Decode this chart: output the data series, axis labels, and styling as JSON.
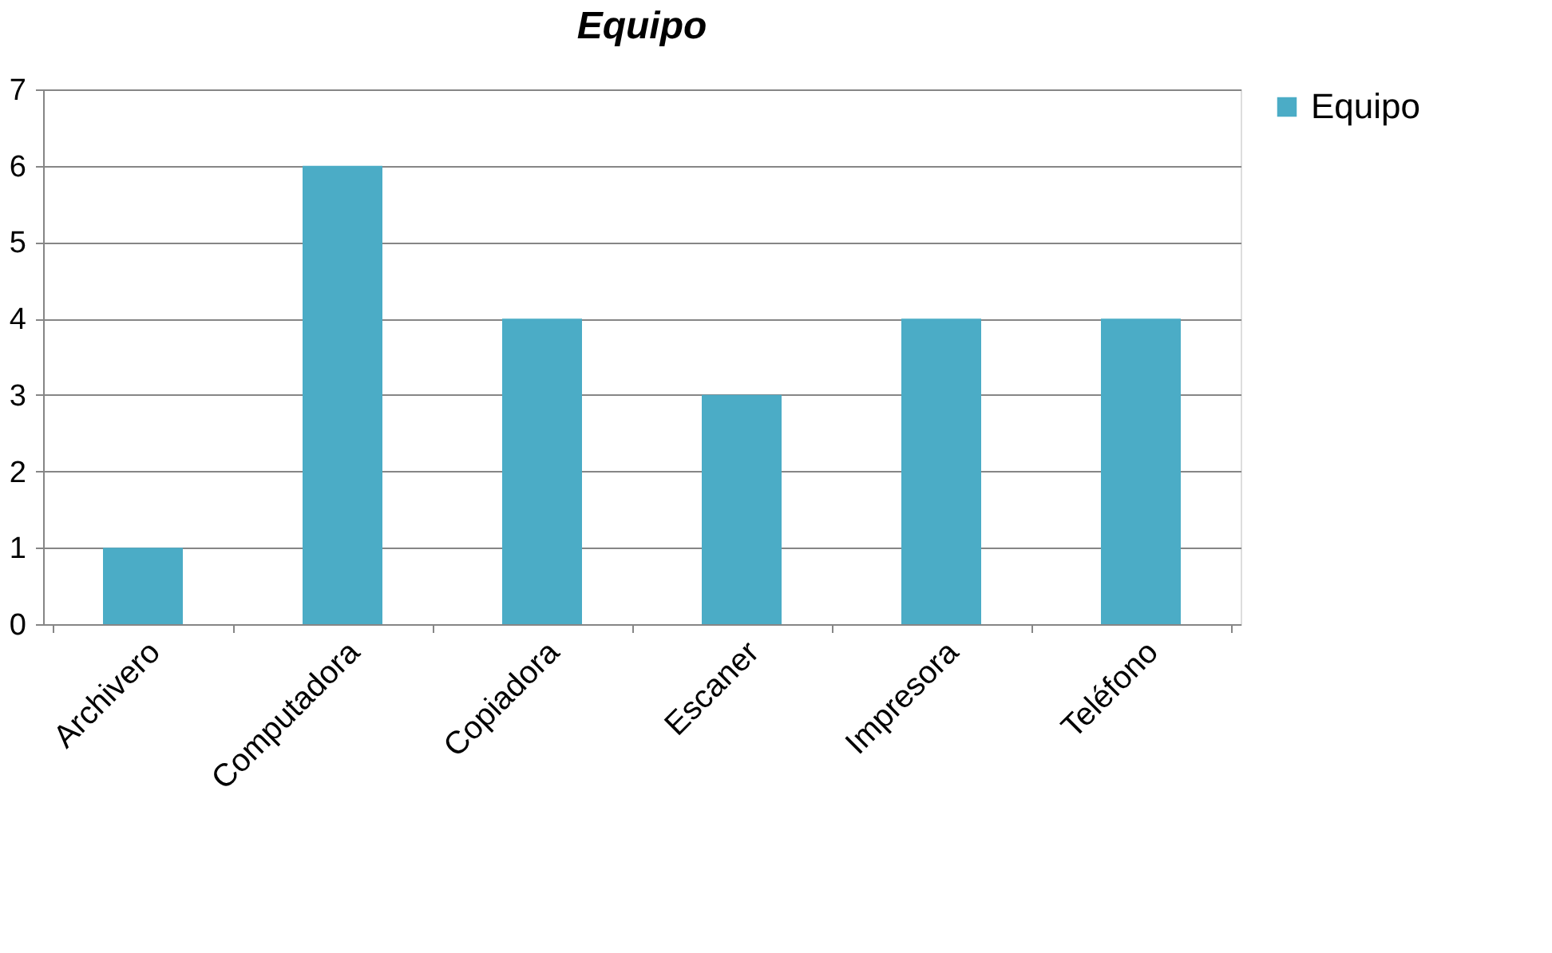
{
  "chart_data": {
    "type": "bar",
    "title": "Equipo",
    "categories": [
      "Archivero",
      "Computadora",
      "Copiadora",
      "Escaner",
      "Impresora",
      "Teléfono"
    ],
    "series": [
      {
        "name": "Equipo",
        "color": "#4bacc6",
        "values": [
          1,
          6,
          4,
          3,
          4,
          4
        ]
      }
    ],
    "ylim": [
      0,
      7
    ],
    "yticks": [
      0,
      1,
      2,
      3,
      4,
      5,
      6,
      7
    ],
    "grid": "y",
    "legend": "right"
  }
}
